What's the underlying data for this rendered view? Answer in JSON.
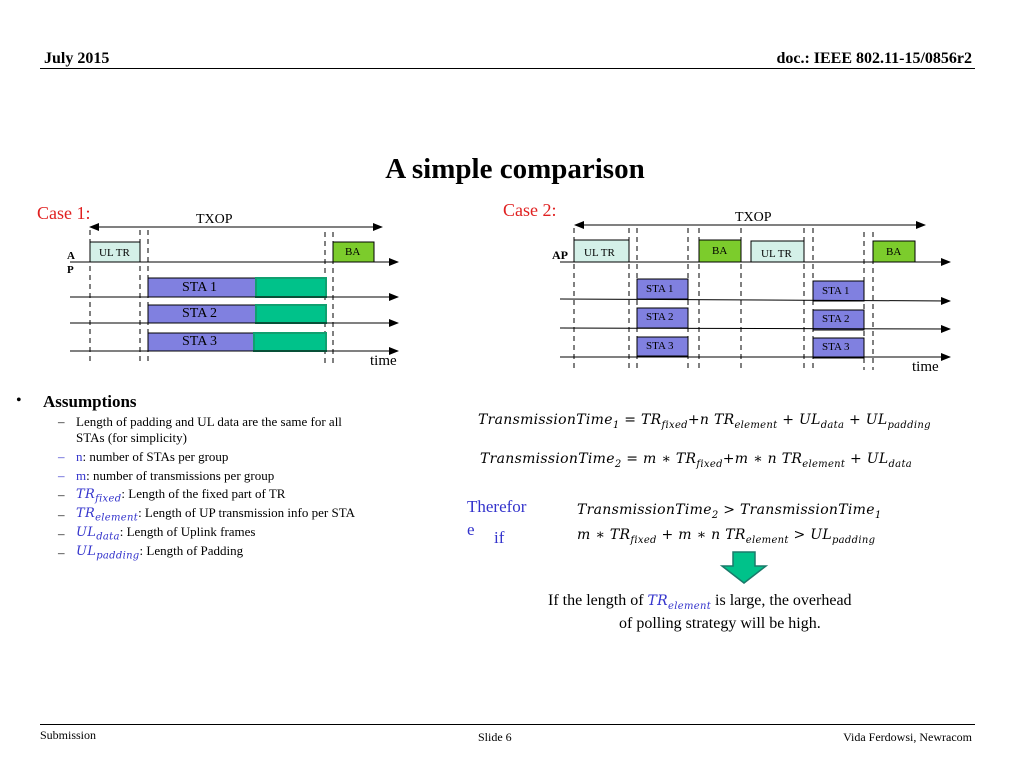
{
  "header": {
    "date": "July 2015",
    "doc": "doc.: IEEE 802.11-15/0856r2"
  },
  "title": "A simple comparison",
  "case1": {
    "label": "Case 1:",
    "txop": "TXOP",
    "ap_a": "A",
    "ap_p": "P",
    "ul_tr": "UL TR",
    "ba": "BA",
    "sta": [
      "STA 1",
      "STA 2",
      "STA 3"
    ],
    "time": "time"
  },
  "case2": {
    "label": "Case 2:",
    "txop": "TXOP",
    "ap": "AP",
    "ul_tr": "UL TR",
    "ba": "BA",
    "sta": [
      "STA 1",
      "STA 2",
      "STA 3"
    ],
    "time": "time"
  },
  "assumptions": {
    "heading": "Assumptions",
    "items": [
      {
        "text": "Length of padding and UL data are the same for all",
        "text2": "STAs (for simplicity)"
      },
      {
        "var": "n",
        "text": ": number of STAs per group"
      },
      {
        "var": "m",
        "text": ": number of transmissions per group"
      },
      {
        "var": "TR",
        "sub": "fixed",
        "text": ": Length of  the fixed part of TR"
      },
      {
        "var": "TR",
        "sub": "element",
        "text": ": Length of UP transmission info per STA"
      },
      {
        "var": "UL",
        "sub": "data",
        "text": ": Length of Uplink frames"
      },
      {
        "var": "UL",
        "sub": "padding",
        "text": ": Length of  Padding"
      }
    ]
  },
  "formulas": {
    "tt": "TransmissionTime",
    "one": "1",
    "two": "2",
    "TR": "TR",
    "UL": "UL",
    "fixed": "fixed",
    "element": "element",
    "data": "data",
    "padding": "padding",
    "eq": " = ",
    "plus": " + ",
    "plus_n": "+n ",
    "m_star": "m ∗ ",
    "plus_m_star_n": "+m ∗ n ",
    "gt": " > ",
    "plus_m_star_n2": " + m ∗ n ",
    "m_star_i": "m ∗ "
  },
  "therefore": {
    "line1": "Therefor",
    "line2": "e",
    "if": "if"
  },
  "conclusion": {
    "pre": "If  the length of ",
    "post": "  is large, the overhead",
    "line2": "of polling strategy will be high."
  },
  "footer": {
    "left": "Submission",
    "center": "Slide 6",
    "right": "Vida Ferdowsi, Newracom"
  },
  "colors": {
    "ul_tr": "#d4f0e8",
    "ba": "#7ccc2c",
    "sta": "#8080e0",
    "pad": "#00c28a",
    "case": "#e02020",
    "blue": "#3333cc"
  }
}
